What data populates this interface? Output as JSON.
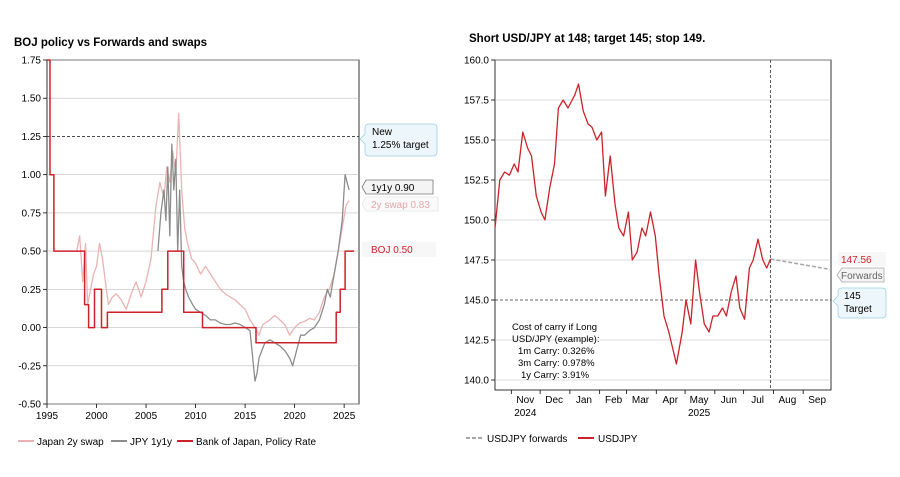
{
  "chart_data": [
    {
      "type": "line",
      "title": "BOJ policy vs Forwards and swaps",
      "xlabel": "",
      "ylabel": "",
      "xlim": [
        1995,
        2026.5
      ],
      "ylim": [
        -0.5,
        1.75
      ],
      "grid": true,
      "legend_placement": "bottom",
      "y_ticks": [
        "1.75",
        "1.50",
        "1.25",
        "1.00",
        "0.75",
        "0.50",
        "0.25",
        "0.00",
        "-0.25",
        "-0.50"
      ],
      "y_tick_values": [
        1.75,
        1.5,
        1.25,
        1.0,
        0.75,
        0.5,
        0.25,
        0.0,
        -0.25,
        -0.5
      ],
      "x_ticks": [
        "1995",
        "2000",
        "2005",
        "2010",
        "2015",
        "2020",
        "2025"
      ],
      "x_tick_values": [
        1995,
        2000,
        2005,
        2010,
        2015,
        2020,
        2025
      ],
      "reference_line": {
        "y": 1.25,
        "style": "dashed"
      },
      "annotations": [
        {
          "text": "New",
          "text2": "1.25% target",
          "y": 1.25
        },
        {
          "text": "1y1y 0.90",
          "y": 0.9
        },
        {
          "text": "2y swap 0.83",
          "y": 0.83
        },
        {
          "text": "BOJ 0.50",
          "y": 0.5
        }
      ],
      "series": [
        {
          "name": "Japan 2y swap",
          "color": "#eab3b3",
          "x": [
            1998.0,
            1998.3,
            1998.6,
            1998.9,
            1999.1,
            1999.4,
            1999.7,
            2000.0,
            2000.3,
            2000.6,
            2000.9,
            2001.2,
            2001.6,
            2002.0,
            2002.5,
            2003.0,
            2003.5,
            2004.0,
            2004.5,
            2005.0,
            2005.5,
            2006.0,
            2006.4,
            2006.8,
            2007.1,
            2007.4,
            2007.7,
            2008.0,
            2008.3,
            2008.6,
            2008.9,
            2009.2,
            2009.6,
            2010.0,
            2010.5,
            2011.0,
            2011.5,
            2012.0,
            2012.5,
            2013.0,
            2013.5,
            2014.0,
            2014.5,
            2015.0,
            2015.5,
            2016.0,
            2016.4,
            2016.8,
            2017.5,
            2018.0,
            2018.5,
            2019.0,
            2019.5,
            2020.0,
            2020.5,
            2021.0,
            2021.5,
            2022.0,
            2022.5,
            2023.0,
            2023.5,
            2024.0,
            2024.4,
            2024.8,
            2025.2,
            2025.5
          ],
          "values": [
            0.5,
            0.6,
            0.3,
            0.55,
            0.15,
            0.25,
            0.35,
            0.4,
            0.55,
            0.45,
            0.3,
            0.15,
            0.2,
            0.22,
            0.18,
            0.12,
            0.22,
            0.3,
            0.2,
            0.3,
            0.45,
            0.8,
            0.95,
            0.85,
            1.05,
            0.95,
            1.15,
            1.0,
            1.4,
            0.9,
            0.65,
            0.55,
            0.45,
            0.42,
            0.35,
            0.4,
            0.35,
            0.3,
            0.25,
            0.22,
            0.2,
            0.18,
            0.15,
            0.12,
            0.05,
            0.0,
            -0.05,
            0.02,
            0.05,
            0.08,
            0.05,
            0.02,
            -0.05,
            0.0,
            0.03,
            0.04,
            0.06,
            0.05,
            0.1,
            0.2,
            0.25,
            0.35,
            0.5,
            0.65,
            0.8,
            0.83
          ]
        },
        {
          "name": "JPY 1y1y",
          "color": "#8c8c8c",
          "x": [
            2006.2,
            2006.5,
            2006.8,
            2007.0,
            2007.2,
            2007.4,
            2007.6,
            2007.8,
            2008.0,
            2008.2,
            2008.4,
            2008.6,
            2008.8,
            2009.0,
            2009.3,
            2009.7,
            2010.0,
            2010.5,
            2011.0,
            2011.5,
            2012.0,
            2012.5,
            2013.0,
            2013.5,
            2014.0,
            2014.5,
            2015.0,
            2015.5,
            2016.0,
            2016.2,
            2016.4,
            2016.7,
            2017.0,
            2017.5,
            2018.0,
            2018.5,
            2019.0,
            2019.5,
            2019.8,
            2020.2,
            2020.6,
            2021.0,
            2021.5,
            2022.0,
            2022.5,
            2023.0,
            2023.3,
            2023.6,
            2024.0,
            2024.4,
            2024.8,
            2025.1,
            2025.5
          ],
          "values": [
            0.5,
            0.75,
            0.9,
            0.7,
            1.05,
            0.6,
            1.2,
            0.9,
            1.1,
            0.5,
            0.9,
            0.4,
            0.3,
            0.25,
            0.2,
            0.15,
            0.12,
            0.1,
            0.08,
            0.05,
            0.05,
            0.03,
            0.02,
            0.02,
            0.03,
            0.02,
            0.0,
            -0.02,
            -0.35,
            -0.3,
            -0.2,
            -0.15,
            -0.1,
            -0.08,
            -0.1,
            -0.12,
            -0.15,
            -0.2,
            -0.25,
            -0.15,
            -0.05,
            -0.05,
            -0.02,
            0.0,
            0.05,
            0.15,
            0.25,
            0.2,
            0.35,
            0.5,
            0.7,
            1.0,
            0.9
          ]
        },
        {
          "name": "Bank of Japan, Policy Rate",
          "color": "#cc2229",
          "x": [
            1995.0,
            1995.3,
            1995.3,
            1995.7,
            1995.7,
            1998.8,
            1998.8,
            1999.2,
            1999.2,
            1999.8,
            1999.8,
            2000.5,
            2000.5,
            2001.1,
            2001.1,
            2006.6,
            2006.6,
            2007.2,
            2007.2,
            2008.8,
            2008.8,
            2010.7,
            2010.7,
            2016.1,
            2016.1,
            2024.2,
            2024.2,
            2024.6,
            2024.6,
            2025.1,
            2025.1,
            2026.0
          ],
          "values": [
            1.75,
            1.75,
            1.0,
            1.0,
            0.5,
            0.5,
            0.15,
            0.15,
            0.0,
            0.0,
            0.25,
            0.25,
            0.0,
            0.0,
            0.1,
            0.1,
            0.25,
            0.25,
            0.5,
            0.5,
            0.1,
            0.1,
            0.0,
            0.0,
            -0.1,
            -0.1,
            0.1,
            0.1,
            0.25,
            0.25,
            0.5,
            0.5
          ]
        }
      ]
    },
    {
      "type": "line",
      "title": "Short USD/JPY at 148; target 145; stop 149.",
      "xlabel": "",
      "ylabel": "",
      "xlim": [
        "2024-10-15",
        "2025-09-30"
      ],
      "ylim": [
        140.0,
        160.0
      ],
      "grid": true,
      "legend_placement": "bottom",
      "y_ticks": [
        "160.0",
        "157.5",
        "155.0",
        "152.5",
        "150.0",
        "147.5",
        "145.0",
        "142.5",
        "140.0"
      ],
      "y_tick_values": [
        160.0,
        157.5,
        155.0,
        152.5,
        150.0,
        147.5,
        145.0,
        142.5,
        140.0
      ],
      "x_ticks": [
        "Nov",
        "Dec",
        "Jan",
        "Feb",
        "Mar",
        "Apr",
        "May",
        "Jun",
        "Jul",
        "Aug",
        "Sep"
      ],
      "x_tick_values": [
        "2024-11-01",
        "2024-12-01",
        "2025-01-01",
        "2025-02-01",
        "2025-03-01",
        "2025-04-01",
        "2025-05-01",
        "2025-06-01",
        "2025-07-01",
        "2025-08-01",
        "2025-09-01"
      ],
      "x_year_labels": [
        {
          "text": "2024",
          "at": "2024-11-01"
        },
        {
          "text": "2025",
          "at": "2025-05-01"
        }
      ],
      "reference_lines": [
        {
          "y": 145.0,
          "style": "dashed"
        },
        {
          "x": "2025-07-29",
          "style": "dashed"
        }
      ],
      "annotations": [
        {
          "text": "147.56",
          "y": 147.56
        },
        {
          "text": "Forwards"
        },
        {
          "text": "145",
          "text2": "Target",
          "y": 145.0
        },
        {
          "text": "Cost of carry if Long",
          "lines": [
            "USD/JPY (example):",
            "1m Carry: 0.326%",
            "3m Carry: 0.978%",
            "1y Carry: 3.91%"
          ]
        }
      ],
      "series": [
        {
          "name": "USDJPY",
          "color": "#cc2229",
          "x": [
            "2024-10-15",
            "2024-10-20",
            "2024-10-25",
            "2024-10-30",
            "2024-11-04",
            "2024-11-08",
            "2024-11-13",
            "2024-11-18",
            "2024-11-22",
            "2024-11-27",
            "2024-12-02",
            "2024-12-06",
            "2024-12-11",
            "2024-12-16",
            "2024-12-20",
            "2024-12-25",
            "2024-12-30",
            "2025-01-06",
            "2025-01-10",
            "2025-01-15",
            "2025-01-20",
            "2025-01-24",
            "2025-01-29",
            "2025-02-03",
            "2025-02-07",
            "2025-02-12",
            "2025-02-17",
            "2025-02-21",
            "2025-02-26",
            "2025-03-03",
            "2025-03-07",
            "2025-03-12",
            "2025-03-17",
            "2025-03-21",
            "2025-03-26",
            "2025-03-31",
            "2025-04-04",
            "2025-04-09",
            "2025-04-14",
            "2025-04-18",
            "2025-04-22",
            "2025-04-28",
            "2025-05-02",
            "2025-05-07",
            "2025-05-12",
            "2025-05-16",
            "2025-05-21",
            "2025-05-26",
            "2025-05-30",
            "2025-06-04",
            "2025-06-09",
            "2025-06-13",
            "2025-06-18",
            "2025-06-23",
            "2025-06-27",
            "2025-07-02",
            "2025-07-07",
            "2025-07-11",
            "2025-07-16",
            "2025-07-21",
            "2025-07-25",
            "2025-07-29"
          ],
          "values": [
            149.5,
            152.5,
            153.0,
            152.8,
            153.5,
            153.0,
            155.5,
            154.5,
            154.0,
            151.5,
            150.5,
            150.0,
            152.0,
            153.5,
            157.0,
            157.5,
            157.0,
            157.8,
            158.5,
            156.8,
            156.0,
            155.8,
            155.0,
            155.5,
            151.5,
            154.0,
            151.0,
            149.5,
            149.0,
            150.5,
            147.5,
            148.0,
            149.5,
            149.0,
            150.5,
            149.0,
            146.5,
            144.0,
            143.0,
            142.0,
            141.0,
            143.0,
            145.0,
            143.5,
            147.5,
            145.5,
            143.5,
            143.0,
            144.0,
            144.0,
            144.5,
            144.0,
            145.5,
            146.5,
            144.5,
            143.8,
            147.0,
            147.5,
            148.8,
            147.5,
            147.0,
            147.56
          ]
        },
        {
          "name": "USDJPY forwards",
          "color": "#a6a6a6",
          "x": [
            "2025-07-29",
            "2025-09-30"
          ],
          "values": [
            147.56,
            146.9
          ]
        }
      ]
    }
  ]
}
